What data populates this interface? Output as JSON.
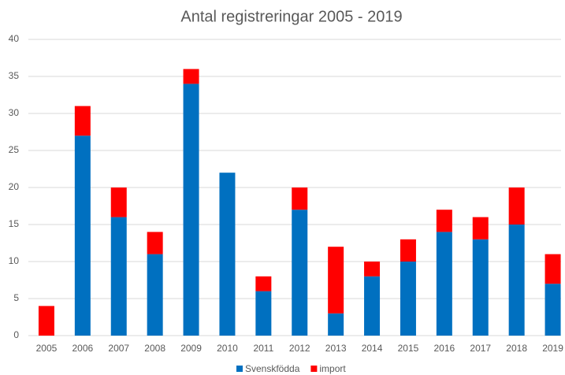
{
  "chart_data": {
    "type": "stacked_bar",
    "title": "Antal registreringar 2005 - 2019",
    "categories": [
      "2005",
      "2006",
      "2007",
      "2008",
      "2009",
      "2010",
      "2011",
      "2012",
      "2013",
      "2014",
      "2015",
      "2016",
      "2017",
      "2018",
      "2019"
    ],
    "series": [
      {
        "name": "Svenskfödda",
        "color": "#0070c0",
        "values": [
          0,
          27,
          16,
          11,
          34,
          22,
          6,
          17,
          3,
          8,
          10,
          14,
          13,
          15,
          7
        ]
      },
      {
        "name": "import",
        "color": "#ff0000",
        "values": [
          4,
          4,
          4,
          3,
          2,
          0,
          2,
          3,
          9,
          2,
          3,
          3,
          3,
          5,
          4
        ]
      }
    ],
    "ylim": [
      0,
      40
    ],
    "yticks": [
      0,
      5,
      10,
      15,
      20,
      25,
      30,
      35,
      40
    ],
    "grid": true,
    "legend": "bottom"
  }
}
